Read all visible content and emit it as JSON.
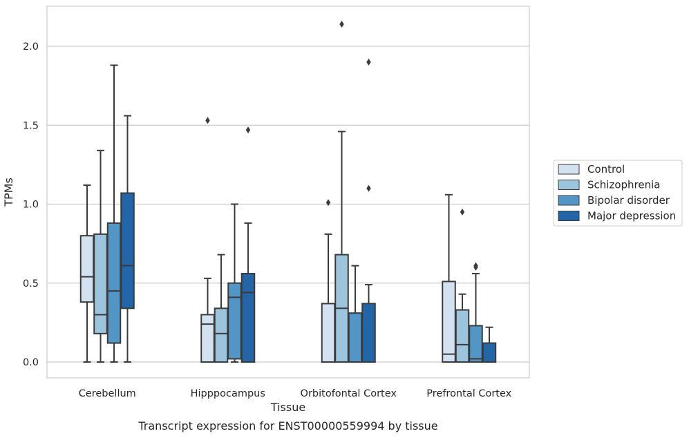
{
  "chart_data": {
    "type": "box",
    "title": "",
    "caption": "Transcript expression for ENST00000559994 by tissue",
    "xlabel": "Tissue",
    "ylabel": "TPMs",
    "ylim": [
      -0.1,
      2.25
    ],
    "yticks": [
      0.0,
      0.5,
      1.0,
      1.5,
      2.0
    ],
    "ytick_labels": [
      "0.0",
      "0.5",
      "1.0",
      "1.5",
      "2.0"
    ],
    "grid": "horizontal",
    "legend_position": "right",
    "categories": [
      "Cerebellum",
      "Hipppocampus",
      "Orbitofontal Cortex",
      "Prefrontal Cortex"
    ],
    "series": [
      {
        "name": "Control",
        "color": "#d3e1f0",
        "boxes": [
          {
            "whislo": 0.0,
            "q1": 0.38,
            "med": 0.54,
            "q3": 0.8,
            "whishi": 1.12,
            "fliers": []
          },
          {
            "whislo": 0.0,
            "q1": 0.0,
            "med": 0.24,
            "q3": 0.3,
            "whishi": 0.53,
            "fliers": [
              1.53
            ]
          },
          {
            "whislo": 0.0,
            "q1": 0.0,
            "med": 0.0,
            "q3": 0.37,
            "whishi": 0.81,
            "fliers": [
              1.01
            ]
          },
          {
            "whislo": 0.0,
            "q1": 0.0,
            "med": 0.05,
            "q3": 0.51,
            "whishi": 1.06,
            "fliers": []
          }
        ]
      },
      {
        "name": "Schizophrenia",
        "color": "#9cc4dd",
        "boxes": [
          {
            "whislo": 0.0,
            "q1": 0.18,
            "med": 0.3,
            "q3": 0.81,
            "whishi": 1.34,
            "fliers": []
          },
          {
            "whislo": 0.0,
            "q1": 0.0,
            "med": 0.18,
            "q3": 0.34,
            "whishi": 0.68,
            "fliers": []
          },
          {
            "whislo": 0.0,
            "q1": 0.0,
            "med": 0.34,
            "q3": 0.68,
            "whishi": 1.46,
            "fliers": [
              2.14
            ]
          },
          {
            "whislo": 0.0,
            "q1": 0.0,
            "med": 0.11,
            "q3": 0.33,
            "whishi": 0.43,
            "fliers": [
              0.95
            ]
          }
        ]
      },
      {
        "name": "Bipolar disorder",
        "color": "#5395c5",
        "boxes": [
          {
            "whislo": 0.0,
            "q1": 0.12,
            "med": 0.45,
            "q3": 0.88,
            "whishi": 1.88,
            "fliers": []
          },
          {
            "whislo": 0.0,
            "q1": 0.02,
            "med": 0.41,
            "q3": 0.5,
            "whishi": 1.0,
            "fliers": []
          },
          {
            "whislo": 0.0,
            "q1": 0.0,
            "med": 0.0,
            "q3": 0.31,
            "whishi": 0.61,
            "fliers": []
          },
          {
            "whislo": 0.0,
            "q1": 0.0,
            "med": 0.02,
            "q3": 0.23,
            "whishi": 0.56,
            "fliers": [
              0.6,
              0.61
            ]
          }
        ]
      },
      {
        "name": "Major depression",
        "color": "#2465a7",
        "boxes": [
          {
            "whislo": 0.0,
            "q1": 0.34,
            "med": 0.61,
            "q3": 1.07,
            "whishi": 1.56,
            "fliers": []
          },
          {
            "whislo": 0.0,
            "q1": 0.0,
            "med": 0.44,
            "q3": 0.56,
            "whishi": 0.88,
            "fliers": [
              1.47
            ]
          },
          {
            "whislo": 0.0,
            "q1": 0.0,
            "med": 0.0,
            "q3": 0.37,
            "whishi": 0.49,
            "fliers": [
              1.1,
              1.9
            ]
          },
          {
            "whislo": 0.0,
            "q1": 0.0,
            "med": 0.0,
            "q3": 0.12,
            "whishi": 0.22,
            "fliers": []
          }
        ]
      }
    ]
  }
}
